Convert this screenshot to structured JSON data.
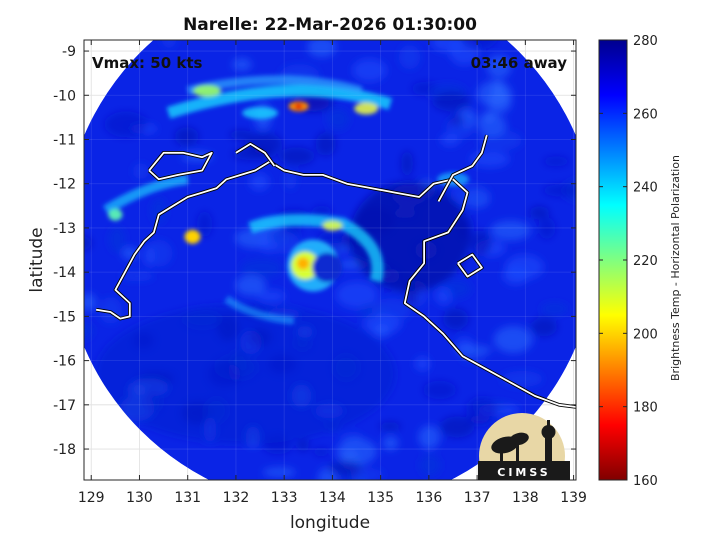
{
  "chart_data": {
    "type": "heatmap",
    "title": "Narelle: 22-Mar-2026 01:30:00",
    "xlabel": "longitude",
    "ylabel": "latitude",
    "xlim": [
      128.85,
      139.05
    ],
    "ylim": [
      -18.7,
      -8.75
    ],
    "xticks": [
      129,
      130,
      131,
      132,
      133,
      134,
      135,
      136,
      137,
      138,
      139
    ],
    "yticks": [
      -9,
      -10,
      -11,
      -12,
      -13,
      -14,
      -15,
      -16,
      -17,
      -18
    ],
    "grid": true,
    "annotations": {
      "vmax": "Vmax: 50 kts",
      "time_away": "03:46 away"
    },
    "swath": {
      "center_lon": 133.95,
      "center_lat": -13.3,
      "radius_deg": 5.55
    },
    "storm": {
      "eye_lon": 133.6,
      "eye_lat": -13.85
    },
    "colorbar": {
      "label": "Brightness Temp - Horizontal Polarization",
      "range": [
        160,
        280
      ],
      "ticks": [
        160,
        180,
        200,
        220,
        240,
        260,
        280
      ],
      "colormap": "jet"
    },
    "logo": "CIMSS"
  }
}
